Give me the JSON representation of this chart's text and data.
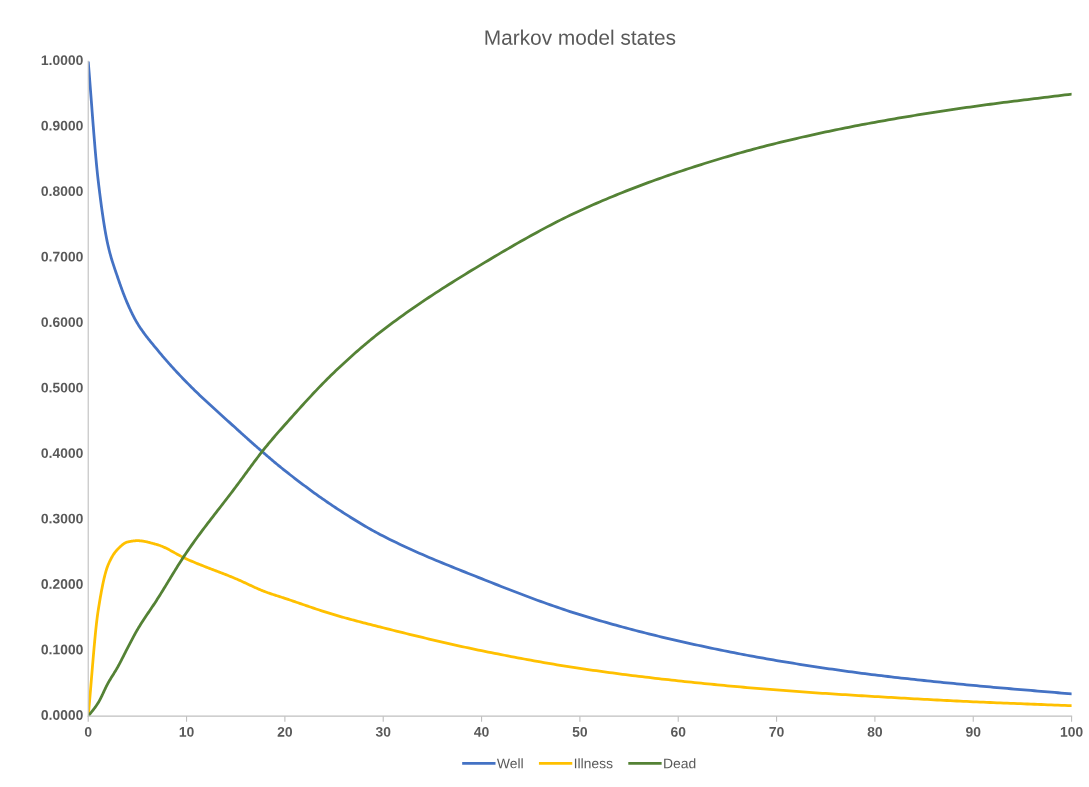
{
  "chart_data": {
    "type": "line",
    "title": "Markov model states",
    "x": [
      0,
      1,
      2,
      3,
      4,
      5,
      7,
      10,
      15,
      18,
      20,
      25,
      30,
      40,
      50,
      60,
      70,
      80,
      90,
      100
    ],
    "series": [
      {
        "name": "Well",
        "color": "#4472c4",
        "values": [
          1.0,
          0.82,
          0.72,
          0.67,
          0.63,
          0.6,
          0.56,
          0.51,
          0.44,
          0.4,
          0.375,
          0.32,
          0.275,
          0.21,
          0.155,
          0.115,
          0.085,
          0.063,
          0.047,
          0.034
        ]
      },
      {
        "name": "Illness",
        "color": "#ffc000",
        "values": [
          0.0,
          0.16,
          0.23,
          0.255,
          0.266,
          0.268,
          0.262,
          0.24,
          0.21,
          0.19,
          0.18,
          0.155,
          0.135,
          0.1,
          0.073,
          0.054,
          0.04,
          0.03,
          0.022,
          0.016
        ]
      },
      {
        "name": "Dead",
        "color": "#548235",
        "values": [
          0.0,
          0.02,
          0.05,
          0.075,
          0.104,
          0.132,
          0.178,
          0.25,
          0.35,
          0.41,
          0.445,
          0.525,
          0.59,
          0.69,
          0.772,
          0.831,
          0.875,
          0.907,
          0.931,
          0.95
        ]
      }
    ],
    "xlim": [
      0,
      100
    ],
    "xticks": [
      0,
      10,
      20,
      30,
      40,
      50,
      60,
      70,
      80,
      90,
      100
    ],
    "ylim": [
      0,
      1
    ],
    "yticks": [
      {
        "value": 0,
        "label": "0.0000"
      },
      {
        "value": 0.1,
        "label": "0.1000"
      },
      {
        "value": 0.2,
        "label": "0.2000"
      },
      {
        "value": 0.3,
        "label": "0.3000"
      },
      {
        "value": 0.4,
        "label": "0.4000"
      },
      {
        "value": 0.5,
        "label": "0.5000"
      },
      {
        "value": 0.6,
        "label": "0.6000"
      },
      {
        "value": 0.7,
        "label": "0.7000"
      },
      {
        "value": 0.8,
        "label": "0.8000"
      },
      {
        "value": 0.9,
        "label": "0.9000"
      },
      {
        "value": 1,
        "label": "1.0000"
      }
    ],
    "legend": "bottom",
    "marker": "none",
    "line_style": "solid"
  }
}
